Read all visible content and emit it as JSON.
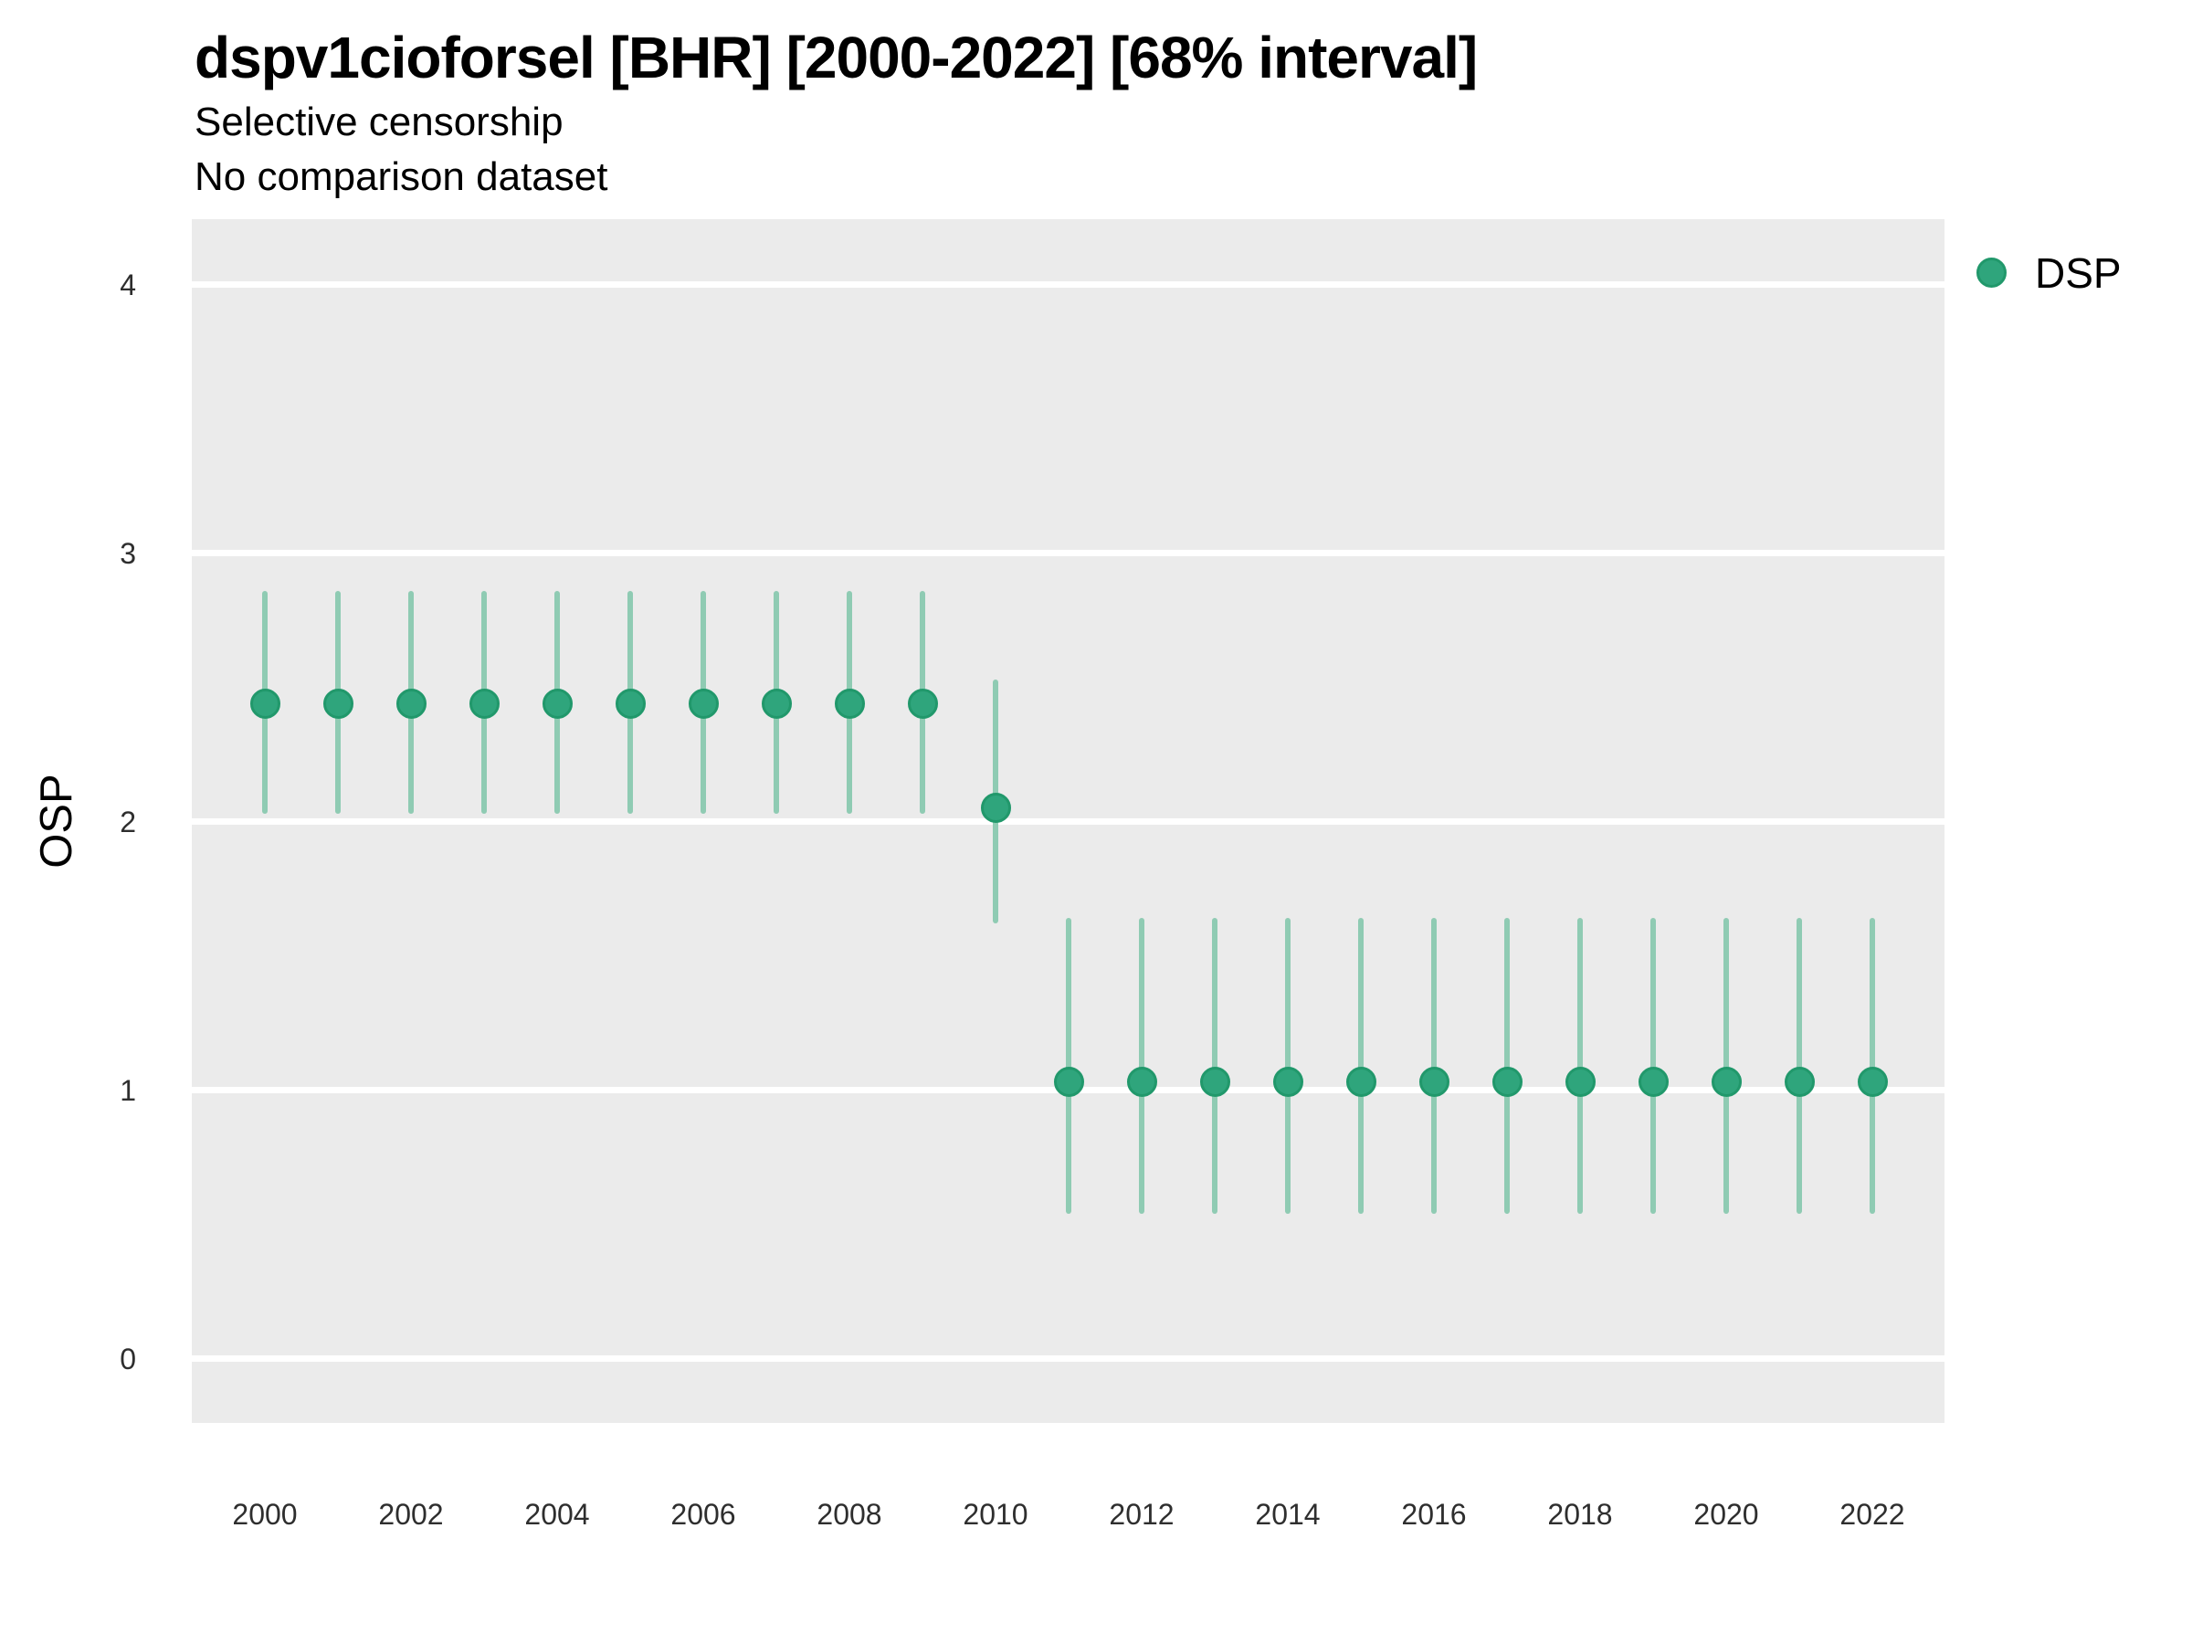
{
  "chart_data": {
    "type": "scatter",
    "subtype": "pointrange",
    "title": "dspv1cioforsel [BHR] [2000-2022] [68% interval]",
    "subtitle": [
      "Selective censorship",
      "No comparison dataset"
    ],
    "xlabel": "",
    "ylabel": "OSP",
    "interval_level": "68%",
    "ylim": [
      -0.24,
      4.24
    ],
    "yticks": [
      0,
      1,
      2,
      3,
      4
    ],
    "xticks": [
      2000,
      2002,
      2004,
      2006,
      2008,
      2010,
      2012,
      2014,
      2016,
      2018,
      2020,
      2022
    ],
    "xlim": [
      1999,
      2023
    ],
    "grid": "horizontal major gridlines only, white on gray panel",
    "legend_position": "top-right outside panel",
    "series": [
      {
        "name": "DSP",
        "points": [
          {
            "year": 2000,
            "value": 2.44,
            "lower": 2.04,
            "upper": 2.85
          },
          {
            "year": 2001,
            "value": 2.44,
            "lower": 2.04,
            "upper": 2.85
          },
          {
            "year": 2002,
            "value": 2.44,
            "lower": 2.04,
            "upper": 2.85
          },
          {
            "year": 2003,
            "value": 2.44,
            "lower": 2.04,
            "upper": 2.85
          },
          {
            "year": 2004,
            "value": 2.44,
            "lower": 2.04,
            "upper": 2.85
          },
          {
            "year": 2005,
            "value": 2.44,
            "lower": 2.04,
            "upper": 2.85
          },
          {
            "year": 2006,
            "value": 2.44,
            "lower": 2.04,
            "upper": 2.85
          },
          {
            "year": 2007,
            "value": 2.44,
            "lower": 2.04,
            "upper": 2.85
          },
          {
            "year": 2008,
            "value": 2.44,
            "lower": 2.04,
            "upper": 2.85
          },
          {
            "year": 2009,
            "value": 2.44,
            "lower": 2.04,
            "upper": 2.85
          },
          {
            "year": 2010,
            "value": 2.05,
            "lower": 1.63,
            "upper": 2.52
          },
          {
            "year": 2011,
            "value": 1.03,
            "lower": 0.55,
            "upper": 1.63
          },
          {
            "year": 2012,
            "value": 1.03,
            "lower": 0.55,
            "upper": 1.63
          },
          {
            "year": 2013,
            "value": 1.03,
            "lower": 0.55,
            "upper": 1.63
          },
          {
            "year": 2014,
            "value": 1.03,
            "lower": 0.55,
            "upper": 1.63
          },
          {
            "year": 2015,
            "value": 1.03,
            "lower": 0.55,
            "upper": 1.63
          },
          {
            "year": 2016,
            "value": 1.03,
            "lower": 0.55,
            "upper": 1.63
          },
          {
            "year": 2017,
            "value": 1.03,
            "lower": 0.55,
            "upper": 1.63
          },
          {
            "year": 2018,
            "value": 1.03,
            "lower": 0.55,
            "upper": 1.63
          },
          {
            "year": 2019,
            "value": 1.03,
            "lower": 0.55,
            "upper": 1.63
          },
          {
            "year": 2020,
            "value": 1.03,
            "lower": 0.55,
            "upper": 1.63
          },
          {
            "year": 2021,
            "value": 1.03,
            "lower": 0.55,
            "upper": 1.63
          },
          {
            "year": 2022,
            "value": 1.03,
            "lower": 0.55,
            "upper": 1.63
          }
        ]
      }
    ],
    "colors": {
      "point_fill": "#2FA57C",
      "point_border": "#21986B",
      "interval_bar": "#8FCBB3",
      "panel_background": "#EBEBEB",
      "gridline": "#FFFFFF",
      "text": "#000000",
      "axis_text": "#2e2e2e"
    }
  }
}
